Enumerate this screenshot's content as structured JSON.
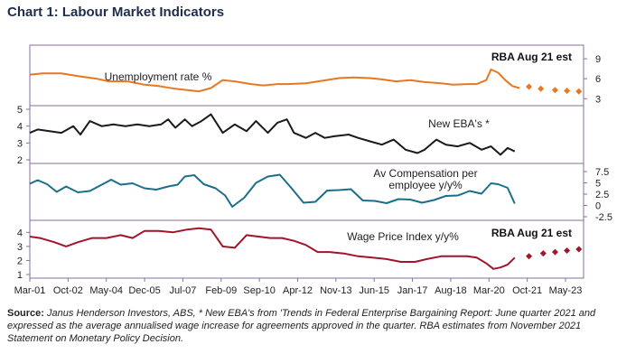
{
  "title": "Chart 1: Labour Market Indicators",
  "source_label": "Source:",
  "source_text": "Janus Henderson Investors, ABS, * New EBA's from 'Trends in Federal Enterprise Bargaining Report: June quarter 2021 and expressed as the average annualised wage increase for agreements approved in the quarter. RBA estimates from November 2021 Statement on Monetary Policy Decision.",
  "colors": {
    "unemployment": "#e87722",
    "eba": "#1a1a1a",
    "compensation": "#1b6f8a",
    "wpi": "#a3142a",
    "frame": "#8a6e9e"
  },
  "chart_data": {
    "type": "line",
    "x_axis": {
      "ticks": [
        "Mar-01",
        "Oct-02",
        "May-04",
        "Dec-05",
        "Jul-07",
        "Feb-09",
        "Sep-10",
        "Apr-12",
        "Nov-13",
        "Jun-15",
        "Jan-17",
        "Aug-18",
        "Mar-20",
        "Oct-21",
        "May-23"
      ],
      "start": 2001.17,
      "end": 2024.5
    },
    "panels": [
      {
        "id": "unemployment",
        "series_name": "Unemployment rate %",
        "annotation": "RBA Aug 21 est",
        "axis_side": "right",
        "ylim": [
          2.5,
          10.5
        ],
        "ticks": [
          "3",
          "6",
          "9"
        ],
        "points": [
          [
            2001.17,
            6.6
          ],
          [
            2001.7,
            6.8
          ],
          [
            2002.5,
            6.8
          ],
          [
            2003.2,
            6.4
          ],
          [
            2004.0,
            6.0
          ],
          [
            2004.5,
            5.6
          ],
          [
            2005.3,
            5.6
          ],
          [
            2006.0,
            5.1
          ],
          [
            2006.6,
            4.9
          ],
          [
            2007.3,
            4.5
          ],
          [
            2007.8,
            4.3
          ],
          [
            2008.3,
            4.1
          ],
          [
            2008.8,
            4.6
          ],
          [
            2009.3,
            5.8
          ],
          [
            2009.8,
            5.6
          ],
          [
            2010.5,
            5.2
          ],
          [
            2011.0,
            5.0
          ],
          [
            2011.6,
            5.2
          ],
          [
            2012.0,
            5.2
          ],
          [
            2012.8,
            5.3
          ],
          [
            2013.5,
            5.7
          ],
          [
            2014.2,
            6.1
          ],
          [
            2014.8,
            6.2
          ],
          [
            2015.5,
            6.1
          ],
          [
            2016.0,
            5.9
          ],
          [
            2016.6,
            5.6
          ],
          [
            2017.2,
            5.8
          ],
          [
            2017.8,
            5.5
          ],
          [
            2018.5,
            5.3
          ],
          [
            2019.0,
            5.1
          ],
          [
            2019.6,
            5.2
          ],
          [
            2020.0,
            5.2
          ],
          [
            2020.4,
            5.8
          ],
          [
            2020.6,
            7.4
          ],
          [
            2020.9,
            6.9
          ],
          [
            2021.2,
            5.8
          ],
          [
            2021.5,
            4.9
          ],
          [
            2021.8,
            4.6
          ]
        ],
        "estimates": [
          [
            2022.2,
            4.8
          ],
          [
            2022.7,
            4.5
          ],
          [
            2023.3,
            4.3
          ],
          [
            2023.8,
            4.2
          ],
          [
            2024.3,
            4.1
          ]
        ]
      },
      {
        "id": "eba",
        "series_name": "New EBA's *",
        "axis_side": "left",
        "ylim": [
          2,
          5
        ],
        "ticks": [
          "2",
          "3",
          "4",
          "5"
        ],
        "points": [
          [
            2001.17,
            3.6
          ],
          [
            2001.5,
            3.8
          ],
          [
            2002.0,
            3.7
          ],
          [
            2002.5,
            3.6
          ],
          [
            2003.0,
            4.0
          ],
          [
            2003.3,
            3.5
          ],
          [
            2003.7,
            4.3
          ],
          [
            2004.2,
            4.0
          ],
          [
            2004.7,
            4.1
          ],
          [
            2005.2,
            4.0
          ],
          [
            2005.7,
            4.1
          ],
          [
            2006.2,
            4.0
          ],
          [
            2006.7,
            4.1
          ],
          [
            2007.0,
            4.4
          ],
          [
            2007.3,
            3.9
          ],
          [
            2007.7,
            4.4
          ],
          [
            2008.0,
            4.0
          ],
          [
            2008.4,
            4.3
          ],
          [
            2008.8,
            4.7
          ],
          [
            2009.3,
            3.6
          ],
          [
            2009.8,
            4.1
          ],
          [
            2010.3,
            3.7
          ],
          [
            2010.7,
            4.3
          ],
          [
            2011.2,
            3.6
          ],
          [
            2011.6,
            4.2
          ],
          [
            2012.0,
            4.4
          ],
          [
            2012.3,
            3.6
          ],
          [
            2012.8,
            3.3
          ],
          [
            2013.2,
            3.6
          ],
          [
            2013.6,
            3.3
          ],
          [
            2014.0,
            3.4
          ],
          [
            2014.6,
            3.5
          ],
          [
            2015.0,
            3.3
          ],
          [
            2015.5,
            3.1
          ],
          [
            2016.0,
            2.9
          ],
          [
            2016.5,
            3.2
          ],
          [
            2017.0,
            2.6
          ],
          [
            2017.5,
            2.4
          ],
          [
            2017.8,
            2.6
          ],
          [
            2018.3,
            3.2
          ],
          [
            2018.7,
            2.9
          ],
          [
            2019.2,
            2.8
          ],
          [
            2019.7,
            3.0
          ],
          [
            2020.2,
            2.6
          ],
          [
            2020.6,
            2.8
          ],
          [
            2021.0,
            2.3
          ],
          [
            2021.3,
            2.7
          ],
          [
            2021.6,
            2.5
          ]
        ]
      },
      {
        "id": "compensation",
        "series_name_lines": [
          "Av Compensation per",
          "employee y/y%"
        ],
        "axis_side": "right",
        "ylim": [
          -2.5,
          8.5
        ],
        "ticks": [
          "-2.5",
          "0",
          "2.5",
          "5",
          "7.5"
        ],
        "points": [
          [
            2001.17,
            4.8
          ],
          [
            2001.5,
            5.6
          ],
          [
            2001.9,
            4.7
          ],
          [
            2002.3,
            3.0
          ],
          [
            2002.7,
            4.2
          ],
          [
            2003.2,
            2.9
          ],
          [
            2003.7,
            3.2
          ],
          [
            2004.2,
            4.6
          ],
          [
            2004.6,
            5.7
          ],
          [
            2005.0,
            4.6
          ],
          [
            2005.5,
            4.9
          ],
          [
            2006.0,
            3.8
          ],
          [
            2006.5,
            3.5
          ],
          [
            2007.0,
            4.2
          ],
          [
            2007.4,
            4.6
          ],
          [
            2007.7,
            6.4
          ],
          [
            2008.1,
            6.7
          ],
          [
            2008.5,
            4.7
          ],
          [
            2009.0,
            3.8
          ],
          [
            2009.4,
            2.2
          ],
          [
            2009.7,
            -0.3
          ],
          [
            2010.2,
            1.7
          ],
          [
            2010.7,
            5.0
          ],
          [
            2011.2,
            6.4
          ],
          [
            2011.7,
            6.8
          ],
          [
            2012.2,
            3.8
          ],
          [
            2012.7,
            0.6
          ],
          [
            2013.2,
            0.8
          ],
          [
            2013.7,
            3.3
          ],
          [
            2014.2,
            3.4
          ],
          [
            2014.7,
            3.6
          ],
          [
            2015.2,
            1.1
          ],
          [
            2015.7,
            1.0
          ],
          [
            2016.2,
            0.5
          ],
          [
            2016.7,
            1.4
          ],
          [
            2017.2,
            1.3
          ],
          [
            2017.7,
            0.6
          ],
          [
            2018.2,
            1.2
          ],
          [
            2018.7,
            2.1
          ],
          [
            2019.2,
            2.2
          ],
          [
            2019.7,
            3.2
          ],
          [
            2020.2,
            2.6
          ],
          [
            2020.6,
            4.9
          ],
          [
            2020.9,
            4.7
          ],
          [
            2021.3,
            3.9
          ],
          [
            2021.6,
            0.4
          ]
        ]
      },
      {
        "id": "wpi",
        "series_name": "Wage Price Index y/y%",
        "annotation": "RBA Aug 21 est",
        "axis_side": "left",
        "ylim": [
          1,
          4.6
        ],
        "ticks": [
          "1",
          "2",
          "3",
          "4"
        ],
        "points": [
          [
            2001.17,
            3.7
          ],
          [
            2001.6,
            3.6
          ],
          [
            2002.2,
            3.3
          ],
          [
            2002.7,
            3.0
          ],
          [
            2003.2,
            3.3
          ],
          [
            2003.8,
            3.6
          ],
          [
            2004.4,
            3.6
          ],
          [
            2005.0,
            3.8
          ],
          [
            2005.5,
            3.6
          ],
          [
            2006.0,
            4.1
          ],
          [
            2006.6,
            4.1
          ],
          [
            2007.2,
            4.0
          ],
          [
            2007.8,
            4.2
          ],
          [
            2008.3,
            4.3
          ],
          [
            2008.8,
            4.2
          ],
          [
            2009.3,
            3.0
          ],
          [
            2009.8,
            2.9
          ],
          [
            2010.3,
            3.8
          ],
          [
            2010.8,
            3.7
          ],
          [
            2011.3,
            3.6
          ],
          [
            2011.8,
            3.6
          ],
          [
            2012.3,
            3.4
          ],
          [
            2012.8,
            3.1
          ],
          [
            2013.3,
            2.6
          ],
          [
            2013.8,
            2.6
          ],
          [
            2014.4,
            2.5
          ],
          [
            2015.0,
            2.3
          ],
          [
            2015.6,
            2.2
          ],
          [
            2016.2,
            2.1
          ],
          [
            2016.8,
            1.9
          ],
          [
            2017.4,
            1.9
          ],
          [
            2017.9,
            2.1
          ],
          [
            2018.5,
            2.3
          ],
          [
            2019.0,
            2.3
          ],
          [
            2019.6,
            2.3
          ],
          [
            2020.0,
            2.2
          ],
          [
            2020.4,
            1.8
          ],
          [
            2020.7,
            1.4
          ],
          [
            2021.0,
            1.5
          ],
          [
            2021.3,
            1.7
          ],
          [
            2021.6,
            2.2
          ]
        ],
        "estimates": [
          [
            2022.2,
            2.3
          ],
          [
            2022.8,
            2.5
          ],
          [
            2023.3,
            2.6
          ],
          [
            2023.8,
            2.7
          ],
          [
            2024.3,
            2.8
          ]
        ]
      }
    ]
  }
}
